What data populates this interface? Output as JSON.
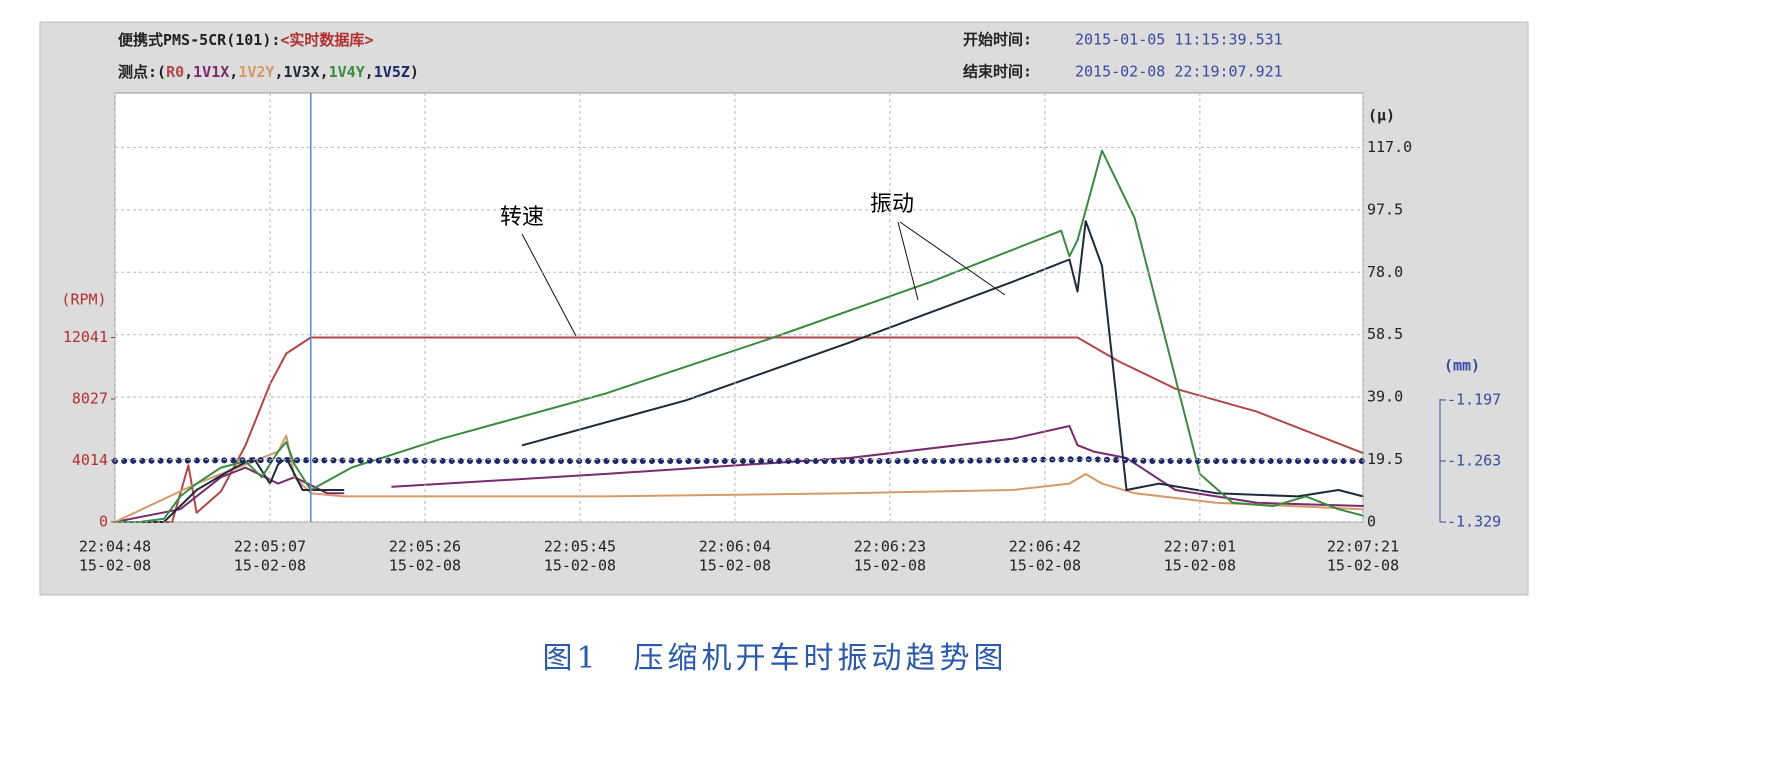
{
  "header": {
    "device": "便携式PMS-5CR(101):",
    "database": "<实时数据库>",
    "start_label": "开始时间:",
    "start_time": "2015-01-05 11:15:39.531",
    "end_label": "结束时间:",
    "end_time": "2015-02-08 22:19:07.921"
  },
  "chart_data": {
    "type": "line",
    "legend": {
      "prefix": "测点:(",
      "separator": ",",
      "suffix": ")"
    },
    "xlim": [
      "22:04:48",
      "22:07:21"
    ],
    "xticks": [
      {
        "time": "22:04:48",
        "date": "15-02-08"
      },
      {
        "time": "22:05:07",
        "date": "15-02-08"
      },
      {
        "time": "22:05:26",
        "date": "15-02-08"
      },
      {
        "time": "22:05:45",
        "date": "15-02-08"
      },
      {
        "time": "22:06:04",
        "date": "15-02-08"
      },
      {
        "time": "22:06:23",
        "date": "15-02-08"
      },
      {
        "time": "22:06:42",
        "date": "15-02-08"
      },
      {
        "time": "22:07:01",
        "date": "15-02-08"
      },
      {
        "time": "22:07:21",
        "date": "15-02-08"
      }
    ],
    "ylabel": "(RPM)",
    "ylim": [
      0,
      28000
    ],
    "yticks": [
      0,
      4014,
      8027,
      12041
    ],
    "y2label": "(μ)",
    "y2lim": [
      0,
      134
    ],
    "y2ticks": [
      0,
      19.5,
      {
        "value": 39,
        "label": "39.0"
      },
      58.5,
      {
        "value": 78,
        "label": "78.0"
      },
      97.5,
      {
        "value": 117,
        "label": "117.0"
      }
    ],
    "y3label": "(mm)",
    "y3lim": [
      -1.329,
      -0.865
    ],
    "y3ticks": [
      -1.329,
      -1.263,
      -1.197
    ],
    "grid": true,
    "cursor": "22:05:12",
    "annotations": [
      {
        "text": "转速"
      },
      {
        "text": "振动"
      }
    ],
    "series": [
      {
        "name": "R0",
        "color": "#b04848",
        "axis": "y",
        "x": [
          "22:04:48",
          "22:04:55",
          "22:04:57",
          "22:04:58",
          "22:05:01",
          "22:05:04",
          "22:05:07",
          "22:05:09",
          "22:05:12",
          "22:06:46",
          "22:06:51",
          "22:06:58",
          "22:07:08",
          "22:07:21"
        ],
        "values": [
          0,
          0,
          3700,
          600,
          2000,
          5000,
          9000,
          11000,
          12041,
          12041,
          10500,
          8700,
          7200,
          4500
        ]
      },
      {
        "name": "1V1X",
        "color": "#7a2a6e",
        "axis": "y2",
        "x": [
          "22:04:48",
          "22:04:56",
          "22:05:01",
          "22:05:04",
          "22:05:08",
          "22:05:10",
          "22:05:14",
          "22:05:16",
          "22:05:18",
          "22:05:22",
          "22:05:48",
          "22:06:18",
          "22:06:38",
          "22:06:45",
          "22:06:46",
          "22:06:48",
          "22:06:52",
          "22:06:58",
          "22:07:08",
          "22:07:21"
        ],
        "values": [
          0,
          4,
          14,
          17,
          12,
          14,
          9,
          9,
          null,
          11,
          15,
          20,
          26,
          30,
          24,
          22,
          20,
          10,
          6,
          5
        ]
      },
      {
        "name": "1V2Y",
        "color": "#d49a68",
        "axis": "y2",
        "x": [
          "22:04:48",
          "22:04:58",
          "22:05:04",
          "22:05:08",
          "22:05:09",
          "22:05:10",
          "22:05:12",
          "22:05:16",
          "22:05:48",
          "22:06:18",
          "22:06:38",
          "22:06:45",
          "22:06:47",
          "22:06:49",
          "22:06:53",
          "22:07:03",
          "22:07:21"
        ],
        "values": [
          0,
          12,
          18,
          22,
          27,
          14,
          9,
          8,
          8,
          9,
          10,
          12,
          15,
          12,
          9,
          6,
          4
        ]
      },
      {
        "name": "1V3X",
        "color": "#1e2a3a",
        "axis": "y2",
        "x": [
          "22:04:48",
          "22:04:54",
          "22:04:58",
          "22:05:02",
          "22:05:05",
          "22:05:07",
          "22:05:08",
          "22:05:09",
          "22:05:11",
          "22:05:16",
          "22:05:18",
          "22:05:38",
          "22:05:58",
          "22:06:18",
          "22:06:38",
          "22:06:43",
          "22:06:45",
          "22:06:46",
          "22:06:47",
          "22:06:49",
          "22:06:52",
          "22:06:56",
          "22:07:03",
          "22:07:13",
          "22:07:18",
          "22:07:21"
        ],
        "values": [
          0,
          0,
          10,
          16,
          20,
          12,
          18,
          20,
          10,
          10,
          null,
          24,
          38,
          56,
          75,
          80,
          82,
          72,
          94,
          80,
          10,
          12,
          9,
          8,
          10,
          8
        ]
      },
      {
        "name": "1V4Y",
        "color": "#3c8a42",
        "axis": "y2",
        "x": [
          "22:04:48",
          "22:04:51",
          "22:04:54",
          "22:04:56",
          "22:04:58",
          "22:05:01",
          "22:05:04",
          "22:05:06",
          "22:05:08",
          "22:05:09",
          "22:05:10",
          "22:05:12",
          "22:05:17",
          "22:05:28",
          "22:05:48",
          "22:06:08",
          "22:06:28",
          "22:06:38",
          "22:06:44",
          "22:06:45",
          "22:06:46",
          "22:06:49",
          "22:06:53",
          "22:06:57",
          "22:07:01",
          "22:07:05",
          "22:07:10",
          "22:07:14",
          "22:07:18",
          "22:07:21"
        ],
        "values": [
          0,
          0,
          1,
          8,
          12,
          17,
          19,
          14,
          22,
          25,
          18,
          10,
          17,
          26,
          40,
          57,
          75,
          85,
          91,
          83,
          88,
          116,
          95,
          55,
          15,
          6,
          5,
          8,
          4,
          2
        ]
      },
      {
        "name": "1V5Z",
        "color": "#1c2868",
        "axis": "y3",
        "x": [
          "22:04:48",
          "22:05:07",
          "22:05:30",
          "22:06:00",
          "22:06:30",
          "22:06:47",
          "22:06:55",
          "22:07:21"
        ],
        "values": [
          -1.263,
          -1.262,
          -1.263,
          -1.263,
          -1.263,
          -1.261,
          -1.263,
          -1.263
        ]
      }
    ]
  },
  "caption": "图1　压缩机开车时振动趋势图"
}
